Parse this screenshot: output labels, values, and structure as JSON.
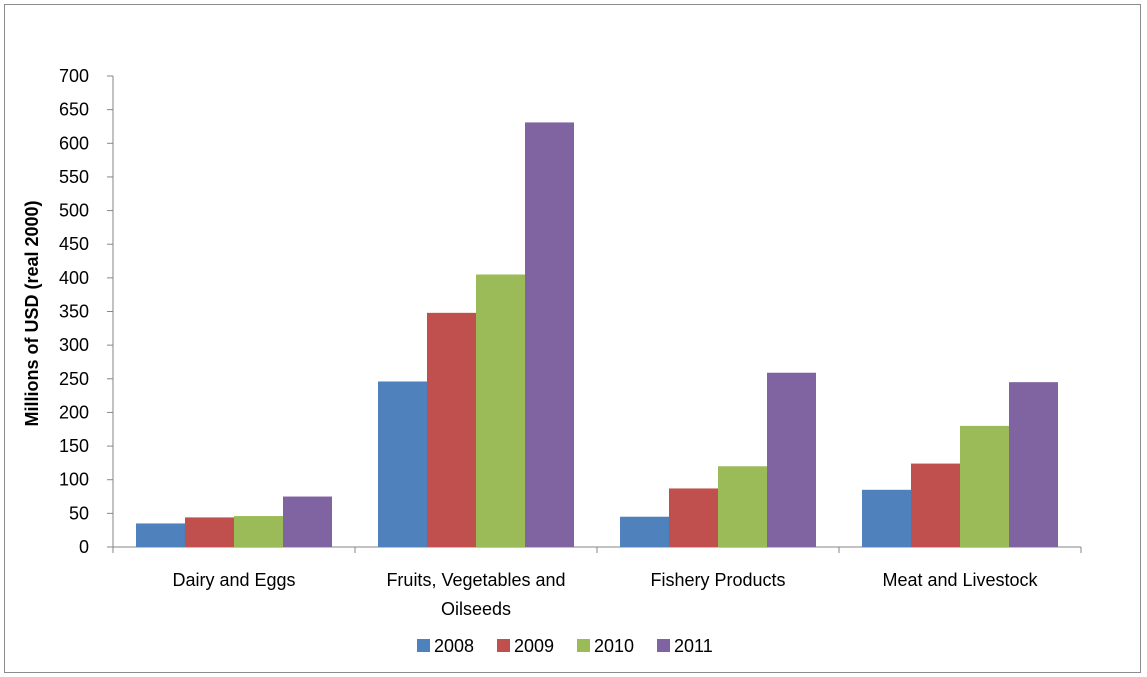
{
  "chart_data": {
    "type": "bar",
    "title": "",
    "xlabel": "",
    "ylabel": "Millions of USD (real 2000)",
    "ylim": [
      0,
      700
    ],
    "yticks": [
      0,
      50,
      100,
      150,
      200,
      250,
      300,
      350,
      400,
      450,
      500,
      550,
      600,
      650,
      700
    ],
    "grid": false,
    "legend_position": "bottom",
    "categories": [
      [
        "Dairy and Eggs"
      ],
      [
        "Fruits, Vegetables and",
        "Oilseeds"
      ],
      [
        "Fishery Products"
      ],
      [
        "Meat and Livestock"
      ]
    ],
    "series": [
      {
        "name": "2008",
        "color": "#4F81BD",
        "values": [
          35,
          246,
          45,
          85
        ]
      },
      {
        "name": "2009",
        "color": "#C0504D",
        "values": [
          44,
          348,
          87,
          124
        ]
      },
      {
        "name": "2010",
        "color": "#9BBB59",
        "values": [
          46,
          405,
          120,
          180
        ]
      },
      {
        "name": "2011",
        "color": "#8064A2",
        "values": [
          75,
          631,
          259,
          245
        ]
      }
    ]
  }
}
